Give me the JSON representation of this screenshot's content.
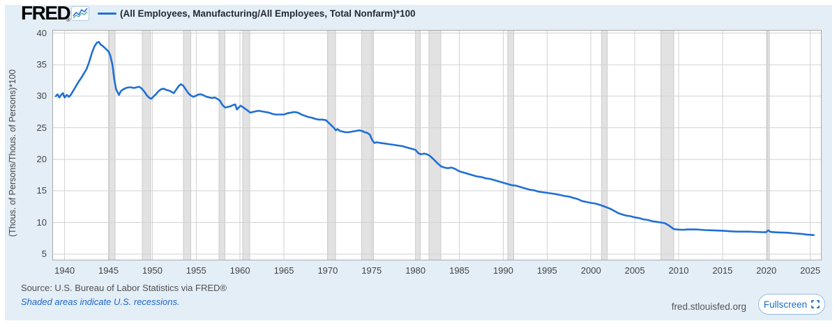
{
  "header": {
    "logo": "FRED",
    "registered_mark": "®",
    "legend_label": "(All Employees, Manufacturing/All Employees, Total Nonfarm)*100"
  },
  "footer": {
    "source": "Source: U.S. Bureau of Labor Statistics via FRED®",
    "recession_note": "Shaded areas indicate U.S. recessions.",
    "site": "fred.stlouisfed.org",
    "fullscreen_label": "Fullscreen"
  },
  "colors": {
    "panel_bg": "#e4eef7",
    "series_line": "#1f6fd4",
    "logo_icon_teal": "#55a8a0",
    "recession_band": "#e2e2e2",
    "recession_band_edge": "#cbcbcb",
    "gridline": "#d2d2d2",
    "frame": "#a9a9a9",
    "plot_bg": "#ffffff",
    "link_blue": "#1b66c9",
    "fullscreen_blue": "#1a6dc6"
  },
  "chart_data": {
    "type": "line",
    "title": "(All Employees, Manufacturing/All Employees, Total Nonfarm)*100",
    "xlabel": "",
    "ylabel": "(Thous. of Persons/Thous. of Persons)*100",
    "units_note": "ratio of thousands of persons, times 100",
    "x_range": [
      1938.6,
      2026.3
    ],
    "y_range": [
      4.0,
      40.5
    ],
    "x_ticks": [
      1940,
      1945,
      1950,
      1955,
      1960,
      1965,
      1970,
      1975,
      1980,
      1985,
      1990,
      1995,
      2000,
      2005,
      2010,
      2015,
      2020,
      2025
    ],
    "y_ticks": [
      5,
      10,
      15,
      20,
      25,
      30,
      35,
      40
    ],
    "grid": true,
    "legend_position": "top",
    "recessions": [
      [
        1945.08,
        1945.75
      ],
      [
        1948.87,
        1949.8
      ],
      [
        1953.54,
        1954.37
      ],
      [
        1957.62,
        1958.29
      ],
      [
        1960.29,
        1961.12
      ],
      [
        1969.96,
        1970.87
      ],
      [
        1973.87,
        1975.2
      ],
      [
        1980.0,
        1980.54
      ],
      [
        1981.54,
        1982.87
      ],
      [
        1990.54,
        1991.2
      ],
      [
        2001.2,
        2001.87
      ],
      [
        2007.96,
        2009.45
      ],
      [
        2020.08,
        2020.33
      ]
    ],
    "series": [
      {
        "name": "(All Employees, Manufacturing/All Employees, Total Nonfarm)*100",
        "points": [
          [
            1939.0,
            30.0
          ],
          [
            1939.2,
            30.3
          ],
          [
            1939.4,
            29.8
          ],
          [
            1939.6,
            30.2
          ],
          [
            1939.8,
            30.5
          ],
          [
            1940.0,
            29.8
          ],
          [
            1940.25,
            30.2
          ],
          [
            1940.5,
            29.9
          ],
          [
            1940.75,
            30.3
          ],
          [
            1941.0,
            30.9
          ],
          [
            1941.3,
            31.6
          ],
          [
            1941.6,
            32.3
          ],
          [
            1941.9,
            32.9
          ],
          [
            1942.2,
            33.6
          ],
          [
            1942.5,
            34.3
          ],
          [
            1942.8,
            35.4
          ],
          [
            1943.1,
            36.8
          ],
          [
            1943.4,
            37.9
          ],
          [
            1943.7,
            38.5
          ],
          [
            1943.9,
            38.6
          ],
          [
            1944.1,
            38.2
          ],
          [
            1944.4,
            37.9
          ],
          [
            1944.7,
            37.5
          ],
          [
            1945.0,
            37.1
          ],
          [
            1945.2,
            36.5
          ],
          [
            1945.45,
            35.0
          ],
          [
            1945.65,
            32.8
          ],
          [
            1945.85,
            31.2
          ],
          [
            1946.05,
            30.6
          ],
          [
            1946.2,
            30.2
          ],
          [
            1946.4,
            30.8
          ],
          [
            1946.7,
            31.1
          ],
          [
            1947.0,
            31.3
          ],
          [
            1947.3,
            31.4
          ],
          [
            1947.6,
            31.4
          ],
          [
            1947.9,
            31.3
          ],
          [
            1948.2,
            31.4
          ],
          [
            1948.5,
            31.5
          ],
          [
            1948.8,
            31.2
          ],
          [
            1949.1,
            30.7
          ],
          [
            1949.4,
            30.1
          ],
          [
            1949.7,
            29.7
          ],
          [
            1949.9,
            29.6
          ],
          [
            1950.1,
            29.9
          ],
          [
            1950.4,
            30.3
          ],
          [
            1950.7,
            30.8
          ],
          [
            1951.0,
            31.1
          ],
          [
            1951.3,
            31.2
          ],
          [
            1951.6,
            31.0
          ],
          [
            1951.9,
            30.9
          ],
          [
            1952.2,
            30.7
          ],
          [
            1952.45,
            30.5
          ],
          [
            1952.7,
            31.0
          ],
          [
            1953.0,
            31.6
          ],
          [
            1953.25,
            31.9
          ],
          [
            1953.5,
            31.7
          ],
          [
            1953.8,
            31.1
          ],
          [
            1954.1,
            30.5
          ],
          [
            1954.4,
            30.1
          ],
          [
            1954.7,
            29.9
          ],
          [
            1955.0,
            30.1
          ],
          [
            1955.3,
            30.3
          ],
          [
            1955.6,
            30.3
          ],
          [
            1955.9,
            30.1
          ],
          [
            1956.2,
            29.9
          ],
          [
            1956.5,
            29.8
          ],
          [
            1956.8,
            29.7
          ],
          [
            1957.1,
            29.8
          ],
          [
            1957.4,
            29.6
          ],
          [
            1957.7,
            29.3
          ],
          [
            1958.0,
            28.6
          ],
          [
            1958.3,
            28.2
          ],
          [
            1958.6,
            28.3
          ],
          [
            1958.9,
            28.4
          ],
          [
            1959.2,
            28.6
          ],
          [
            1959.45,
            28.7
          ],
          [
            1959.65,
            27.9
          ],
          [
            1959.85,
            28.2
          ],
          [
            1960.05,
            28.5
          ],
          [
            1960.3,
            28.3
          ],
          [
            1960.6,
            28.0
          ],
          [
            1960.9,
            27.7
          ],
          [
            1961.15,
            27.4
          ],
          [
            1961.45,
            27.5
          ],
          [
            1961.75,
            27.6
          ],
          [
            1962.1,
            27.7
          ],
          [
            1962.5,
            27.6
          ],
          [
            1962.9,
            27.5
          ],
          [
            1963.3,
            27.4
          ],
          [
            1963.7,
            27.2
          ],
          [
            1964.1,
            27.1
          ],
          [
            1964.5,
            27.1
          ],
          [
            1965.0,
            27.1
          ],
          [
            1965.4,
            27.3
          ],
          [
            1965.8,
            27.4
          ],
          [
            1966.2,
            27.5
          ],
          [
            1966.6,
            27.4
          ],
          [
            1967.0,
            27.1
          ],
          [
            1967.4,
            26.9
          ],
          [
            1967.8,
            26.7
          ],
          [
            1968.2,
            26.6
          ],
          [
            1968.6,
            26.4
          ],
          [
            1969.0,
            26.3
          ],
          [
            1969.4,
            26.3
          ],
          [
            1969.8,
            26.2
          ],
          [
            1970.1,
            25.8
          ],
          [
            1970.4,
            25.4
          ],
          [
            1970.7,
            25.0
          ],
          [
            1970.92,
            24.6
          ],
          [
            1971.1,
            24.8
          ],
          [
            1971.4,
            24.5
          ],
          [
            1971.7,
            24.4
          ],
          [
            1972.0,
            24.3
          ],
          [
            1972.4,
            24.3
          ],
          [
            1972.8,
            24.4
          ],
          [
            1973.2,
            24.5
          ],
          [
            1973.6,
            24.6
          ],
          [
            1973.9,
            24.5
          ],
          [
            1974.2,
            24.3
          ],
          [
            1974.5,
            24.2
          ],
          [
            1974.8,
            23.9
          ],
          [
            1975.05,
            23.1
          ],
          [
            1975.3,
            22.6
          ],
          [
            1975.6,
            22.7
          ],
          [
            1976.0,
            22.6
          ],
          [
            1976.5,
            22.5
          ],
          [
            1977.0,
            22.4
          ],
          [
            1977.5,
            22.3
          ],
          [
            1978.0,
            22.2
          ],
          [
            1978.5,
            22.1
          ],
          [
            1979.0,
            21.9
          ],
          [
            1979.5,
            21.7
          ],
          [
            1980.0,
            21.5
          ],
          [
            1980.3,
            21.0
          ],
          [
            1980.6,
            20.8
          ],
          [
            1981.0,
            20.9
          ],
          [
            1981.3,
            20.8
          ],
          [
            1981.6,
            20.6
          ],
          [
            1982.0,
            20.1
          ],
          [
            1982.5,
            19.4
          ],
          [
            1982.9,
            18.9
          ],
          [
            1983.3,
            18.7
          ],
          [
            1983.7,
            18.6
          ],
          [
            1984.1,
            18.7
          ],
          [
            1984.5,
            18.5
          ],
          [
            1985.0,
            18.1
          ],
          [
            1985.5,
            17.9
          ],
          [
            1986.0,
            17.7
          ],
          [
            1986.5,
            17.5
          ],
          [
            1987.0,
            17.3
          ],
          [
            1987.5,
            17.2
          ],
          [
            1988.0,
            17.0
          ],
          [
            1988.5,
            16.9
          ],
          [
            1989.0,
            16.7
          ],
          [
            1989.5,
            16.5
          ],
          [
            1990.0,
            16.3
          ],
          [
            1990.5,
            16.1
          ],
          [
            1991.0,
            15.9
          ],
          [
            1991.4,
            15.85
          ],
          [
            1992.0,
            15.6
          ],
          [
            1992.5,
            15.4
          ],
          [
            1993.0,
            15.2
          ],
          [
            1993.5,
            15.1
          ],
          [
            1994.0,
            14.9
          ],
          [
            1994.5,
            14.8
          ],
          [
            1995.0,
            14.7
          ],
          [
            1995.5,
            14.6
          ],
          [
            1996.0,
            14.5
          ],
          [
            1996.5,
            14.35
          ],
          [
            1997.0,
            14.2
          ],
          [
            1997.5,
            14.1
          ],
          [
            1998.0,
            13.9
          ],
          [
            1998.5,
            13.7
          ],
          [
            1999.0,
            13.4
          ],
          [
            1999.5,
            13.25
          ],
          [
            2000.0,
            13.1
          ],
          [
            2000.5,
            13.0
          ],
          [
            2001.0,
            12.8
          ],
          [
            2001.4,
            12.6
          ],
          [
            2001.9,
            12.35
          ],
          [
            2002.3,
            12.1
          ],
          [
            2002.7,
            11.8
          ],
          [
            2003.1,
            11.5
          ],
          [
            2003.5,
            11.3
          ],
          [
            2004.0,
            11.1
          ],
          [
            2004.5,
            11.0
          ],
          [
            2005.0,
            10.8
          ],
          [
            2005.5,
            10.7
          ],
          [
            2006.0,
            10.5
          ],
          [
            2006.5,
            10.4
          ],
          [
            2007.0,
            10.2
          ],
          [
            2007.5,
            10.1
          ],
          [
            2008.0,
            10.0
          ],
          [
            2008.4,
            9.9
          ],
          [
            2008.8,
            9.6
          ],
          [
            2009.1,
            9.3
          ],
          [
            2009.45,
            8.95
          ],
          [
            2009.8,
            8.9
          ],
          [
            2010.2,
            8.85
          ],
          [
            2010.6,
            8.85
          ],
          [
            2011.0,
            8.9
          ],
          [
            2011.5,
            8.9
          ],
          [
            2012.0,
            8.9
          ],
          [
            2012.5,
            8.85
          ],
          [
            2013.0,
            8.8
          ],
          [
            2013.5,
            8.78
          ],
          [
            2014.0,
            8.75
          ],
          [
            2014.5,
            8.72
          ],
          [
            2015.0,
            8.7
          ],
          [
            2015.5,
            8.65
          ],
          [
            2016.0,
            8.6
          ],
          [
            2016.5,
            8.57
          ],
          [
            2017.0,
            8.55
          ],
          [
            2017.5,
            8.55
          ],
          [
            2018.0,
            8.55
          ],
          [
            2018.5,
            8.52
          ],
          [
            2019.0,
            8.5
          ],
          [
            2019.5,
            8.47
          ],
          [
            2019.95,
            8.45
          ],
          [
            2020.2,
            8.75
          ],
          [
            2020.5,
            8.5
          ],
          [
            2021.0,
            8.45
          ],
          [
            2021.5,
            8.42
          ],
          [
            2022.0,
            8.4
          ],
          [
            2022.5,
            8.38
          ],
          [
            2023.0,
            8.3
          ],
          [
            2023.5,
            8.25
          ],
          [
            2024.0,
            8.2
          ],
          [
            2024.5,
            8.1
          ],
          [
            2025.0,
            8.05
          ],
          [
            2025.4,
            8.0
          ]
        ]
      }
    ]
  }
}
